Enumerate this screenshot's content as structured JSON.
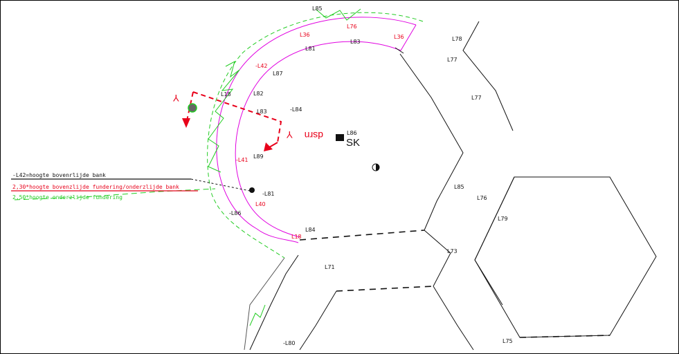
{
  "drawing": {
    "section_label": "dsrn",
    "section_marker": "Y",
    "sk_label": "SK",
    "sk_small": "L86",
    "colors": {
      "black": "#111111",
      "red": "#e8001a",
      "green": "#22cc22",
      "magenta": "#e000e0"
    }
  },
  "legend": [
    {
      "text": "-L42=hoogte bovenrlijde bank",
      "color": "#111111"
    },
    {
      "text": "2,30*hoogte bovenzlijde fundering/onderzlijde bank",
      "color": "#e8001a"
    },
    {
      "text": "2,50*hoogte onderzlijde fundering",
      "color": "#22cc22"
    }
  ],
  "labels_black": [
    {
      "id": "l85",
      "text": "L85"
    },
    {
      "id": "l81",
      "text": "L81"
    },
    {
      "id": "l83",
      "text": "L83"
    },
    {
      "id": "l87",
      "text": "L87"
    },
    {
      "id": "l82",
      "text": "L82"
    },
    {
      "id": "l83b",
      "text": "L83"
    },
    {
      "id": "l84",
      "text": "-L84"
    },
    {
      "id": "l89",
      "text": "L89"
    },
    {
      "id": "l81b",
      "text": "-L81"
    },
    {
      "id": "l86",
      "text": "-L86"
    },
    {
      "id": "l84b",
      "text": "L84"
    },
    {
      "id": "l78",
      "text": "L78"
    },
    {
      "id": "l77",
      "text": "L77"
    },
    {
      "id": "l77b",
      "text": "L77"
    },
    {
      "id": "l85b",
      "text": "L85"
    },
    {
      "id": "l76",
      "text": "L76"
    },
    {
      "id": "l79",
      "text": "L79"
    },
    {
      "id": "l73",
      "text": "L73"
    },
    {
      "id": "l71",
      "text": "L71"
    },
    {
      "id": "l75",
      "text": "L75"
    },
    {
      "id": "l80",
      "text": "-L80"
    },
    {
      "id": "l18",
      "text": "L18"
    }
  ],
  "labels_red": [
    {
      "id": "r36",
      "text": "L36"
    },
    {
      "id": "r76",
      "text": "L76"
    },
    {
      "id": "r36b",
      "text": "L36"
    },
    {
      "id": "r42",
      "text": "-L42"
    },
    {
      "id": "r41",
      "text": "-L41"
    },
    {
      "id": "r40",
      "text": "L40"
    },
    {
      "id": "r18",
      "text": "L18"
    }
  ]
}
